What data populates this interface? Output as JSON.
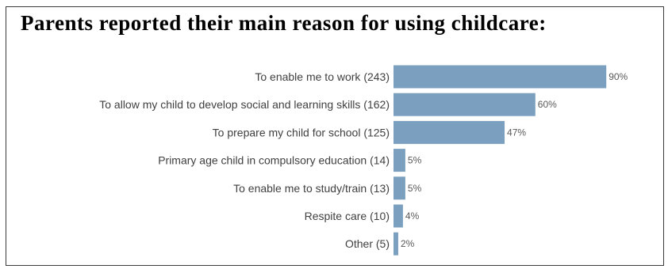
{
  "chart_data": {
    "type": "bar",
    "orientation": "horizontal",
    "title": "Parents reported their main reason for using childcare:",
    "categories": [
      "To enable me to work (243)",
      "To allow my child to develop social and learning skills (162)",
      "To prepare my child for school (125)",
      "Primary age child in compulsory education (14)",
      "To enable me to study/train (13)",
      "Respite care (10)",
      "Other (5)"
    ],
    "values": [
      90,
      60,
      47,
      5,
      5,
      4,
      2
    ],
    "value_labels": [
      "90%",
      "60%",
      "47%",
      "5%",
      "5%",
      "4%",
      "2%"
    ],
    "xlim": [
      0,
      100
    ],
    "grid": false,
    "bar_color": "#7ba0bf"
  }
}
